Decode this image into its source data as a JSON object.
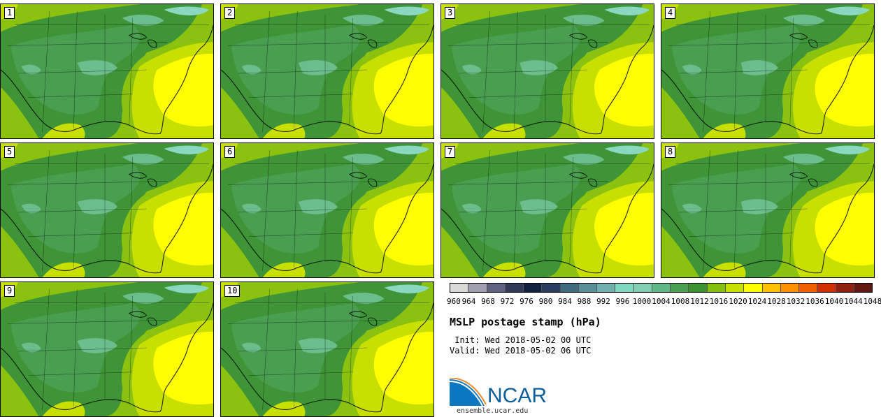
{
  "panels": [
    {
      "label": "1"
    },
    {
      "label": "2"
    },
    {
      "label": "3"
    },
    {
      "label": "4"
    },
    {
      "label": "5"
    },
    {
      "label": "6"
    },
    {
      "label": "7"
    },
    {
      "label": "8"
    },
    {
      "label": "9"
    },
    {
      "label": "10"
    }
  ],
  "colorbar": {
    "ticks": [
      "960",
      "964",
      "968",
      "972",
      "976",
      "980",
      "984",
      "988",
      "992",
      "996",
      "1000",
      "1004",
      "1008",
      "1012",
      "1016",
      "1020",
      "1024",
      "1028",
      "1032",
      "1036",
      "1040",
      "1044",
      "1048"
    ],
    "colors": [
      "#d9d9d9",
      "#a0a0b0",
      "#606080",
      "#303a58",
      "#142040",
      "#283e5c",
      "#406c80",
      "#5a8e98",
      "#70b0b0",
      "#80d8c0",
      "#7ed0b0",
      "#60b888",
      "#48a050",
      "#3c9430",
      "#84c010",
      "#c8e000",
      "#ffff00",
      "#ffc000",
      "#ff9000",
      "#f06000",
      "#d03000",
      "#902010",
      "#601810"
    ]
  },
  "map_colors": {
    "deep_green": "#3f9437",
    "mid_green": "#4a9e50",
    "light_green": "#6bbd8b",
    "aqua": "#8ad8c0",
    "lime": "#8bc20f",
    "yellow_green": "#c8e000",
    "yellow": "#ffff00"
  },
  "title": "MSLP postage stamp (hPa)",
  "init": " Init: Wed 2018-05-02 00 UTC",
  "valid": "Valid: Wed 2018-05-02 06 UTC",
  "logo": {
    "text": "NCAR",
    "color": "#0a5f9a"
  },
  "site": "ensemble.ucar.edu"
}
